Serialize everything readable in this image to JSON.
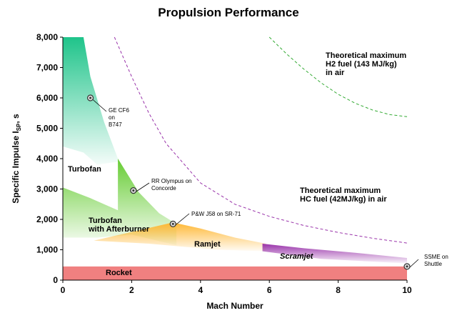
{
  "chart_data": {
    "type": "area",
    "title": "Propulsion Performance",
    "xlabel": "Mach Number",
    "ylabel_main": "Specific Impulse I",
    "ylabel_sub": "SP",
    "ylabel_suffix": ", s",
    "xlim": [
      0,
      10
    ],
    "ylim": [
      0,
      8000
    ],
    "x_ticks": [
      0,
      2,
      4,
      6,
      8,
      10
    ],
    "y_ticks": [
      0,
      1000,
      2000,
      3000,
      4000,
      5000,
      6000,
      7000,
      8000
    ],
    "y_tick_labels": [
      "0",
      "1,000",
      "2,000",
      "3,000",
      "4,000",
      "5,000",
      "6,000",
      "7,000",
      "8,000"
    ],
    "grid": false,
    "regions": [
      {
        "name": "Turbofan",
        "color": "#1fc48a",
        "upper": [
          [
            0,
            8000
          ],
          [
            0.6,
            8000
          ],
          [
            0.8,
            6700
          ],
          [
            1.2,
            5200
          ],
          [
            1.6,
            4000
          ]
        ],
        "lower": [
          [
            0,
            4400
          ],
          [
            0.6,
            4200
          ],
          [
            1.0,
            3800
          ],
          [
            1.6,
            3900
          ]
        ]
      },
      {
        "name": "Turbofan with Afterburner",
        "color": "#66cc33",
        "upper": [
          [
            0,
            3050
          ],
          [
            0.8,
            2700
          ],
          [
            1.6,
            2300
          ],
          [
            1.6,
            4000
          ],
          [
            2.2,
            2900
          ],
          [
            2.8,
            2200
          ],
          [
            3.3,
            1850
          ]
        ],
        "lower": [
          [
            0,
            1400
          ],
          [
            1.0,
            1400
          ],
          [
            2.0,
            1500
          ],
          [
            3.3,
            1150
          ]
        ]
      },
      {
        "name": "Ramjet",
        "color": "#ffb733",
        "upper": [
          [
            3.2,
            1900
          ],
          [
            4.0,
            1700
          ],
          [
            5.0,
            1400
          ],
          [
            5.9,
            1200
          ]
        ],
        "lower": [
          [
            0.9,
            1300
          ],
          [
            2.5,
            1200
          ],
          [
            4.5,
            1000
          ],
          [
            5.9,
            950
          ]
        ]
      },
      {
        "name": "Scramjet",
        "color": "#9933aa",
        "upper": [
          [
            5.8,
            1200
          ],
          [
            7.0,
            1050
          ],
          [
            8.5,
            900
          ],
          [
            10,
            730
          ]
        ],
        "lower": [
          [
            5.8,
            950
          ],
          [
            7.5,
            700
          ],
          [
            10,
            550
          ]
        ]
      },
      {
        "name": "Rocket",
        "color": "#f08080",
        "upper": [
          [
            0,
            450
          ],
          [
            10,
            450
          ]
        ],
        "lower": [
          [
            0,
            0
          ],
          [
            10,
            0
          ]
        ]
      }
    ],
    "theoretical_curves": [
      {
        "name": "Theoretical maximum H2 fuel (143 MJ/kg) in air",
        "color": "#33aa33",
        "x": [
          6.0,
          6.5,
          7.0,
          7.5,
          8.0,
          8.5,
          9.0,
          9.5,
          10.0
        ],
        "y": [
          8000,
          7450,
          6950,
          6500,
          6120,
          5820,
          5600,
          5450,
          5380
        ]
      },
      {
        "name": "Theoretical maximum HC fuel (42MJ/kg) in air",
        "color": "#9933aa",
        "x": [
          1.5,
          2.0,
          2.5,
          3.0,
          4.0,
          5.0,
          6.0,
          7.0,
          8.0,
          9.0,
          10.0
        ],
        "y": [
          8000,
          6700,
          5500,
          4500,
          3200,
          2500,
          2100,
          1800,
          1570,
          1380,
          1220
        ]
      }
    ],
    "engines": [
      {
        "label_lines": [
          "GE CF6",
          "on",
          "B747"
        ],
        "x": 0.8,
        "y": 6000
      },
      {
        "label_lines": [
          "RR Olympus on",
          "Concorde"
        ],
        "x": 2.05,
        "y": 2950
      },
      {
        "label_lines": [
          "P&W J58 on SR-71"
        ],
        "x": 3.2,
        "y": 1850
      },
      {
        "label_lines": [
          "SSME on",
          "Shuttle"
        ],
        "x": 10.0,
        "y": 450
      }
    ],
    "annotations": {
      "turbofan": "Turbofan",
      "afterburner_1": "Turbofan",
      "afterburner_2": "with Afterburner",
      "ramjet": "Ramjet",
      "scramjet": "Scramjet",
      "rocket": "Rocket",
      "h2_1": "Theoretical maximum",
      "h2_2": "H2 fuel (143 MJ/kg)",
      "h2_3": "in air",
      "hc_1": "Theoretical maximum",
      "hc_2": "HC fuel (42MJ/kg) in air"
    }
  }
}
